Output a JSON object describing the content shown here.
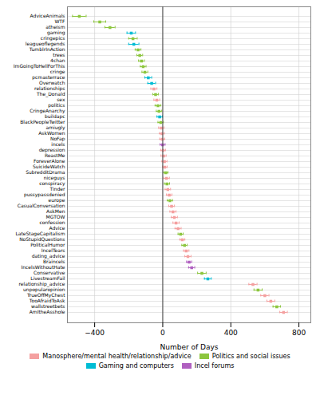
{
  "chart_data": {
    "type": "errorbar",
    "orientation": "horizontal",
    "marker": "square",
    "xlabel": "Number of Days",
    "categories": [
      "AdviceAnimals",
      "WTF",
      "atheism",
      "gaming",
      "cringepics",
      "leagueoflegends",
      "TumblrInAction",
      "trees",
      "4chan",
      "ImGoingToHellForThis",
      "cringe",
      "pcmasterrace",
      "Overwatch",
      "relationships",
      "The_Donald",
      "sex",
      "politics",
      "CringeAnarchy",
      "buildapc",
      "BlackPeopleTwitter",
      "amiugly",
      "AskWomen",
      "NoFap",
      "incels",
      "depression",
      "RoastMe",
      "ForeverAlone",
      "SuicideWatch",
      "SubredditDrama",
      "niceguys",
      "conspiracy",
      "Tinder",
      "pussypassdenied",
      "europe",
      "CasualConversation",
      "AskMen",
      "MGTOW",
      "confession",
      "Advice",
      "LateStageCapitalism",
      "NoStupidQuestions",
      "PoliticalHumor",
      "IncelTears",
      "dating_advice",
      "Braincels",
      "IncelsWithoutHate",
      "Conservative",
      "LivestreamFail",
      "relationship_advice",
      "unpopularopinion",
      "TrueOffMyChest",
      "TooAfraidToAsk",
      "wallstreetbets",
      "AmItheAsshole"
    ],
    "values": [
      -490,
      -370,
      -310,
      -185,
      -175,
      -170,
      -145,
      -135,
      -125,
      -115,
      -105,
      -85,
      -65,
      -52,
      -42,
      -35,
      -28,
      -22,
      -18,
      -12,
      -8,
      -5,
      -3,
      -1,
      2,
      5,
      10,
      12,
      18,
      22,
      25,
      30,
      38,
      42,
      52,
      60,
      68,
      78,
      90,
      105,
      115,
      128,
      138,
      148,
      155,
      170,
      230,
      265,
      530,
      560,
      600,
      635,
      670,
      710
    ],
    "ci_low": [
      -530,
      -405,
      -340,
      -210,
      -200,
      -200,
      -162,
      -152,
      -142,
      -132,
      -122,
      -105,
      -88,
      -70,
      -58,
      -52,
      -45,
      -38,
      -34,
      -28,
      -24,
      -20,
      -18,
      -16,
      -12,
      -10,
      -5,
      -2,
      5,
      5,
      10,
      14,
      22,
      26,
      35,
      42,
      50,
      60,
      72,
      90,
      100,
      112,
      122,
      130,
      140,
      152,
      205,
      245,
      506,
      536,
      576,
      612,
      648,
      688
    ],
    "ci_high": [
      -450,
      -335,
      -280,
      -160,
      -150,
      -140,
      -128,
      -118,
      -108,
      -98,
      -88,
      -65,
      -42,
      -34,
      -26,
      -18,
      -11,
      -6,
      -2,
      4,
      8,
      10,
      12,
      14,
      16,
      20,
      25,
      26,
      31,
      39,
      40,
      46,
      54,
      58,
      69,
      78,
      86,
      96,
      108,
      120,
      130,
      144,
      154,
      166,
      170,
      188,
      255,
      285,
      554,
      584,
      624,
      658,
      692,
      732
    ],
    "colors": [
      "#8dc63f",
      "#8dc63f",
      "#8dc63f",
      "#00bcd4",
      "#8dc63f",
      "#00bcd4",
      "#8dc63f",
      "#8dc63f",
      "#8dc63f",
      "#8dc63f",
      "#8dc63f",
      "#00bcd4",
      "#00bcd4",
      "#f4a0a0",
      "#8dc63f",
      "#f4a0a0",
      "#8dc63f",
      "#8dc63f",
      "#00bcd4",
      "#8dc63f",
      "#f4a0a0",
      "#f4a0a0",
      "#f4a0a0",
      "#b060c0",
      "#f4a0a0",
      "#f4a0a0",
      "#f4a0a0",
      "#f4a0a0",
      "#8dc63f",
      "#f4a0a0",
      "#8dc63f",
      "#f4a0a0",
      "#f4a0a0",
      "#8dc63f",
      "#f4a0a0",
      "#f4a0a0",
      "#f4a0a0",
      "#f4a0a0",
      "#f4a0a0",
      "#8dc63f",
      "#f4a0a0",
      "#8dc63f",
      "#f4a0a0",
      "#f4a0a0",
      "#b060c0",
      "#b060c0",
      "#8dc63f",
      "#00bcd4",
      "#f4a0a0",
      "#8dc63f",
      "#f4a0a0",
      "#f4a0a0",
      "#8dc63f",
      "#f4a0a0"
    ],
    "legend_entries": [
      {
        "name": "Manosphere/mental health/relationship/advice",
        "color": "#f4a0a0"
      },
      {
        "name": "Politics and social issues",
        "color": "#8dc63f"
      },
      {
        "name": "Gaming and computers",
        "color": "#00bcd4"
      },
      {
        "name": "Incel forums",
        "color": "#b060c0"
      }
    ],
    "legend": "bottom",
    "vline": 0,
    "vline_color": "#444444",
    "xlim": [
      -560,
      870
    ],
    "xticks": [
      -400,
      0,
      400,
      800
    ],
    "grid": true
  }
}
